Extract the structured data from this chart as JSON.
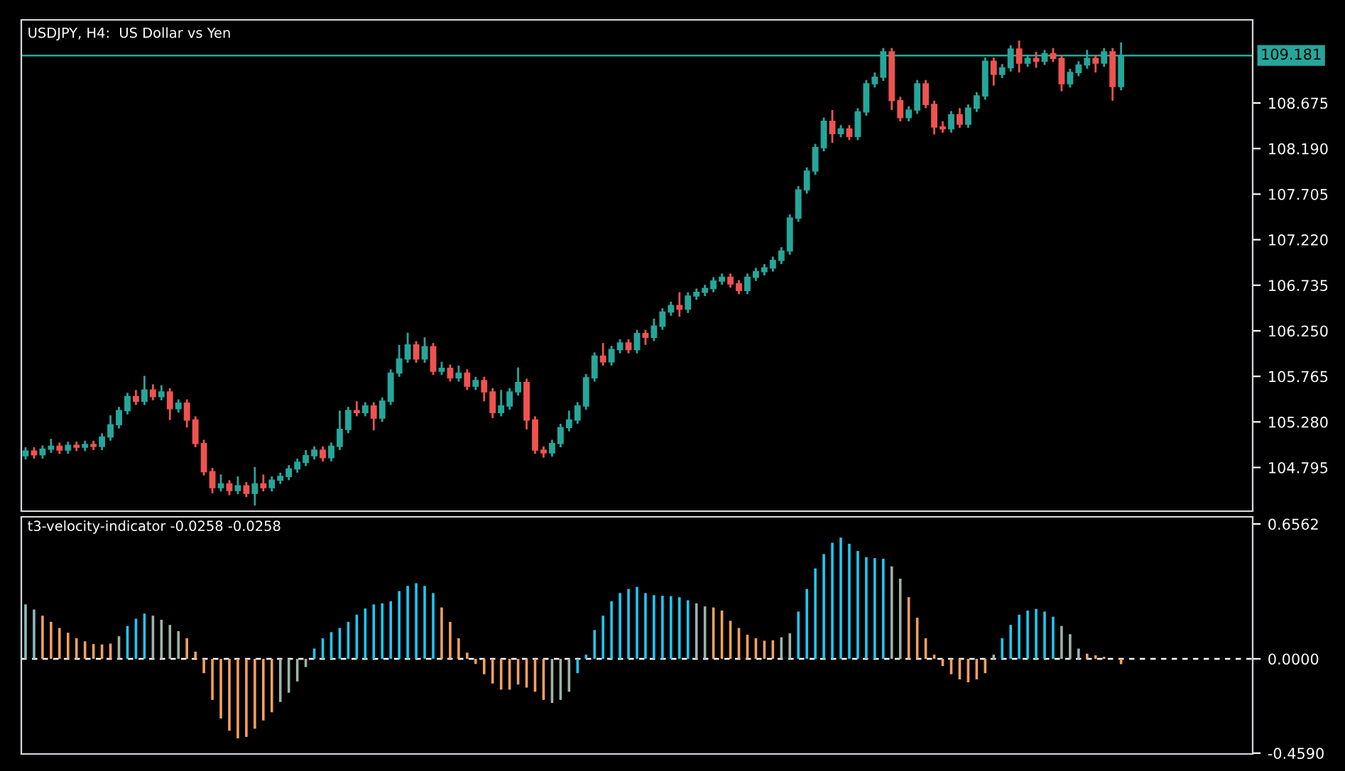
{
  "chart_data": [
    {
      "type": "candlestick",
      "title": "USDJPY, H4:  US Dollar vs Yen",
      "categories": [
        null,
        null,
        null,
        null,
        null,
        null,
        null,
        null,
        null,
        null,
        null,
        null,
        null,
        null,
        null,
        null,
        null,
        null,
        null,
        null,
        null,
        null,
        null,
        null,
        null,
        null,
        null,
        null,
        null,
        null,
        null,
        null,
        null,
        null,
        null,
        null,
        null,
        null,
        null,
        null,
        null,
        null,
        null,
        null,
        null,
        null,
        null,
        null,
        null,
        null,
        null,
        null,
        null,
        null,
        null,
        null,
        null,
        null,
        null,
        null,
        null,
        null,
        null,
        null,
        null,
        null,
        null,
        null,
        null,
        null,
        null,
        null,
        null,
        null,
        null,
        null,
        null,
        null,
        null,
        null,
        null,
        null,
        null,
        null,
        null,
        null,
        null,
        null,
        null,
        null,
        null,
        null,
        null,
        null,
        null,
        null,
        null,
        null,
        null,
        null,
        null,
        null,
        null,
        null,
        null,
        null,
        null,
        null,
        null,
        null,
        null,
        null,
        null,
        null,
        null,
        null,
        null,
        null,
        null,
        null,
        null,
        null,
        null,
        null,
        null,
        null,
        null,
        null,
        null,
        null,
        null,
        null,
        null,
        null,
        null,
        null,
        null,
        null,
        null,
        null,
        null,
        null,
        null,
        null,
        null
      ],
      "ohlc": [
        [
          104.92,
          105.01,
          104.88,
          104.97
        ],
        [
          104.97,
          105.01,
          104.89,
          104.93
        ],
        [
          104.93,
          105.03,
          104.89,
          104.99
        ],
        [
          104.99,
          105.1,
          104.95,
          105.02
        ],
        [
          105.02,
          105.06,
          104.94,
          104.98
        ],
        [
          104.98,
          105.07,
          104.94,
          105.03
        ],
        [
          105.03,
          105.07,
          104.97,
          105.01
        ],
        [
          105.01,
          105.08,
          104.97,
          105.04
        ],
        [
          105.04,
          105.08,
          104.98,
          105.02
        ],
        [
          105.02,
          105.16,
          104.98,
          105.12
        ],
        [
          105.12,
          105.35,
          105.08,
          105.25
        ],
        [
          105.25,
          105.44,
          105.21,
          105.4
        ],
        [
          105.4,
          105.59,
          105.36,
          105.55
        ],
        [
          105.55,
          105.62,
          105.46,
          105.5
        ],
        [
          105.5,
          105.77,
          105.46,
          105.62
        ],
        [
          105.62,
          105.68,
          105.51,
          105.55
        ],
        [
          105.55,
          105.67,
          105.51,
          105.6
        ],
        [
          105.6,
          105.64,
          105.3,
          105.42
        ],
        [
          105.42,
          105.52,
          105.38,
          105.48
        ],
        [
          105.48,
          105.52,
          105.22,
          105.3
        ],
        [
          105.3,
          105.34,
          105.01,
          105.05
        ],
        [
          105.05,
          105.09,
          104.71,
          104.75
        ],
        [
          104.75,
          104.79,
          104.52,
          104.58
        ],
        [
          104.58,
          104.72,
          104.54,
          104.62
        ],
        [
          104.62,
          104.66,
          104.5,
          104.55
        ],
        [
          104.55,
          104.7,
          104.51,
          104.6
        ],
        [
          104.6,
          104.64,
          104.48,
          104.52
        ],
        [
          104.52,
          104.8,
          104.39,
          104.62
        ],
        [
          104.62,
          104.72,
          104.54,
          104.58
        ],
        [
          104.58,
          104.7,
          104.54,
          104.66
        ],
        [
          104.66,
          104.74,
          104.62,
          104.7
        ],
        [
          104.7,
          104.82,
          104.66,
          104.78
        ],
        [
          104.78,
          104.89,
          104.74,
          104.85
        ],
        [
          104.85,
          104.98,
          104.81,
          104.92
        ],
        [
          104.92,
          105.02,
          104.88,
          104.98
        ],
        [
          104.98,
          105.02,
          104.86,
          104.9
        ],
        [
          104.9,
          105.06,
          104.86,
          105.02
        ],
        [
          105.02,
          105.4,
          104.98,
          105.2
        ],
        [
          105.2,
          105.44,
          105.16,
          105.4
        ],
        [
          105.4,
          105.5,
          105.34,
          105.38
        ],
        [
          105.38,
          105.49,
          105.34,
          105.45
        ],
        [
          105.45,
          105.49,
          105.19,
          105.32
        ],
        [
          105.32,
          105.54,
          105.28,
          105.5
        ],
        [
          105.5,
          105.84,
          105.46,
          105.8
        ],
        [
          105.8,
          106.1,
          105.76,
          105.95
        ],
        [
          105.95,
          106.23,
          105.91,
          106.1
        ],
        [
          106.1,
          106.14,
          105.91,
          105.95
        ],
        [
          105.95,
          106.18,
          105.91,
          106.08
        ],
        [
          106.08,
          106.12,
          105.78,
          105.82
        ],
        [
          105.82,
          105.92,
          105.78,
          105.85
        ],
        [
          105.85,
          105.89,
          105.71,
          105.75
        ],
        [
          105.75,
          105.88,
          105.71,
          105.8
        ],
        [
          105.8,
          105.84,
          105.62,
          105.66
        ],
        [
          105.66,
          105.76,
          105.62,
          105.72
        ],
        [
          105.72,
          105.76,
          105.5,
          105.6
        ],
        [
          105.6,
          105.64,
          105.32,
          105.38
        ],
        [
          105.38,
          105.62,
          105.34,
          105.45
        ],
        [
          105.45,
          105.64,
          105.41,
          105.6
        ],
        [
          105.6,
          105.86,
          105.56,
          105.7
        ],
        [
          105.7,
          105.74,
          105.2,
          105.3
        ],
        [
          105.3,
          105.34,
          104.94,
          104.98
        ],
        [
          104.98,
          105.02,
          104.9,
          104.95
        ],
        [
          104.95,
          105.09,
          104.91,
          105.05
        ],
        [
          105.05,
          105.26,
          105.01,
          105.22
        ],
        [
          105.22,
          105.4,
          105.18,
          105.3
        ],
        [
          105.3,
          105.49,
          105.26,
          105.45
        ],
        [
          105.45,
          105.79,
          105.41,
          105.75
        ],
        [
          105.75,
          106.02,
          105.71,
          105.98
        ],
        [
          105.98,
          106.12,
          105.88,
          105.92
        ],
        [
          105.92,
          106.09,
          105.88,
          106.05
        ],
        [
          106.05,
          106.16,
          106.01,
          106.12
        ],
        [
          106.12,
          106.16,
          106.01,
          106.05
        ],
        [
          106.05,
          106.26,
          106.01,
          106.22
        ],
        [
          106.22,
          106.26,
          106.1,
          106.18
        ],
        [
          106.18,
          106.38,
          106.14,
          106.3
        ],
        [
          106.3,
          106.49,
          106.26,
          106.45
        ],
        [
          106.45,
          106.56,
          106.41,
          106.52
        ],
        [
          106.52,
          106.66,
          106.4,
          106.48
        ],
        [
          106.48,
          106.66,
          106.44,
          106.62
        ],
        [
          106.62,
          106.7,
          106.58,
          106.66
        ],
        [
          106.66,
          106.74,
          106.62,
          106.7
        ],
        [
          106.7,
          106.82,
          106.66,
          106.78
        ],
        [
          106.78,
          106.86,
          106.74,
          106.82
        ],
        [
          106.82,
          106.86,
          106.71,
          106.75
        ],
        [
          106.75,
          106.79,
          106.64,
          106.68
        ],
        [
          106.68,
          106.86,
          106.64,
          106.82
        ],
        [
          106.82,
          106.92,
          106.78,
          106.88
        ],
        [
          106.88,
          106.96,
          106.84,
          106.92
        ],
        [
          106.92,
          107.04,
          106.88,
          107.0
        ],
        [
          107.0,
          107.14,
          106.96,
          107.1
        ],
        [
          107.1,
          107.49,
          107.06,
          107.45
        ],
        [
          107.45,
          107.79,
          107.41,
          107.75
        ],
        [
          107.75,
          107.99,
          107.71,
          107.95
        ],
        [
          107.95,
          108.24,
          107.91,
          108.2
        ],
        [
          108.2,
          108.52,
          108.16,
          108.48
        ],
        [
          108.48,
          108.6,
          108.25,
          108.35
        ],
        [
          108.35,
          108.44,
          108.31,
          108.4
        ],
        [
          108.4,
          108.44,
          108.28,
          108.32
        ],
        [
          108.32,
          108.62,
          108.28,
          108.58
        ],
        [
          108.58,
          108.92,
          108.54,
          108.88
        ],
        [
          108.88,
          109.0,
          108.84,
          108.95
        ],
        [
          108.95,
          109.26,
          108.91,
          109.22
        ],
        [
          109.22,
          109.26,
          108.6,
          108.7
        ],
        [
          108.7,
          108.74,
          108.48,
          108.52
        ],
        [
          108.52,
          108.64,
          108.48,
          108.6
        ],
        [
          108.6,
          108.92,
          108.56,
          108.88
        ],
        [
          108.88,
          108.92,
          108.62,
          108.66
        ],
        [
          108.66,
          108.7,
          108.34,
          108.42
        ],
        [
          108.42,
          108.48,
          108.36,
          108.4
        ],
        [
          108.4,
          108.59,
          108.36,
          108.55
        ],
        [
          108.55,
          108.62,
          108.41,
          108.45
        ],
        [
          108.45,
          108.66,
          108.41,
          108.62
        ],
        [
          108.62,
          108.79,
          108.58,
          108.75
        ],
        [
          108.75,
          109.16,
          108.71,
          109.12
        ],
        [
          109.12,
          109.16,
          108.86,
          108.98
        ],
        [
          108.98,
          109.09,
          108.94,
          109.05
        ],
        [
          109.05,
          109.29,
          109.01,
          109.25
        ],
        [
          109.25,
          109.34,
          109.0,
          109.1
        ],
        [
          109.1,
          109.19,
          109.06,
          109.15
        ],
        [
          109.15,
          109.22,
          109.05,
          109.12
        ],
        [
          109.12,
          109.24,
          109.08,
          109.2
        ],
        [
          109.2,
          109.26,
          109.11,
          109.15
        ],
        [
          109.15,
          109.19,
          108.8,
          108.88
        ],
        [
          108.88,
          109.04,
          108.84,
          109.0
        ],
        [
          109.0,
          109.12,
          108.96,
          109.08
        ],
        [
          109.08,
          109.24,
          109.04,
          109.15
        ],
        [
          109.15,
          109.19,
          109.0,
          109.1
        ],
        [
          109.1,
          109.26,
          109.06,
          109.22
        ],
        [
          109.22,
          109.26,
          108.7,
          108.85
        ],
        [
          108.85,
          109.32,
          108.81,
          109.181
        ],
        null,
        null,
        null,
        null,
        null,
        null,
        null,
        null,
        null,
        null,
        null,
        null,
        null,
        null,
        null
      ],
      "colors": [
        "#26a69a",
        "#ef5350",
        "#26a69a",
        "#26a69a",
        "#ef5350",
        "#26a69a",
        "#ef5350",
        "#26a69a",
        "#ef5350",
        "#26a69a",
        "#26a69a",
        "#26a69a",
        "#26a69a",
        "#ef5350",
        "#26a69a",
        "#ef5350",
        "#26a69a",
        "#ef5350",
        "#26a69a",
        "#ef5350",
        "#ef5350",
        "#ef5350",
        "#ef5350",
        "#26a69a",
        "#ef5350",
        "#26a69a",
        "#ef5350",
        "#26a69a",
        "#ef5350",
        "#26a69a",
        "#26a69a",
        "#26a69a",
        "#26a69a",
        "#26a69a",
        "#26a69a",
        "#ef5350",
        "#26a69a",
        "#26a69a",
        "#26a69a",
        "#ef5350",
        "#26a69a",
        "#ef5350",
        "#26a69a",
        "#26a69a",
        "#26a69a",
        "#26a69a",
        "#ef5350",
        "#26a69a",
        "#ef5350",
        "#26a69a",
        "#ef5350",
        "#26a69a",
        "#ef5350",
        "#26a69a",
        "#ef5350",
        "#ef5350",
        "#26a69a",
        "#26a69a",
        "#26a69a",
        "#ef5350",
        "#ef5350",
        "#ef5350",
        "#26a69a",
        "#26a69a",
        "#26a69a",
        "#26a69a",
        "#26a69a",
        "#26a69a",
        "#ef5350",
        "#26a69a",
        "#26a69a",
        "#ef5350",
        "#26a69a",
        "#ef5350",
        "#26a69a",
        "#26a69a",
        "#26a69a",
        "#ef5350",
        "#26a69a",
        "#26a69a",
        "#26a69a",
        "#26a69a",
        "#26a69a",
        "#ef5350",
        "#ef5350",
        "#26a69a",
        "#26a69a",
        "#26a69a",
        "#26a69a",
        "#26a69a",
        "#26a69a",
        "#26a69a",
        "#26a69a",
        "#26a69a",
        "#26a69a",
        "#ef5350",
        "#26a69a",
        "#ef5350",
        "#26a69a",
        "#26a69a",
        "#26a69a",
        "#26a69a",
        "#ef5350",
        "#ef5350",
        "#26a69a",
        "#26a69a",
        "#ef5350",
        "#ef5350",
        "#ef5350",
        "#26a69a",
        "#ef5350",
        "#26a69a",
        "#26a69a",
        "#26a69a",
        "#ef5350",
        "#26a69a",
        "#26a69a",
        "#ef5350",
        "#26a69a",
        "#ef5350",
        "#26a69a",
        "#ef5350",
        "#ef5350",
        "#26a69a",
        "#26a69a",
        "#26a69a",
        "#ef5350",
        "#26a69a",
        "#ef5350",
        "#26a69a",
        null,
        null,
        null,
        null,
        null,
        null,
        null,
        null,
        null,
        null,
        null,
        null,
        null,
        null,
        null
      ],
      "ylim": [
        104.33,
        109.56
      ],
      "yticks": [
        {
          "value": 104.795,
          "label": "104.795"
        },
        {
          "value": 105.28,
          "label": "105.280"
        },
        {
          "value": 105.765,
          "label": "105.765"
        },
        {
          "value": 106.25,
          "label": "106.250"
        },
        {
          "value": 106.735,
          "label": "106.735"
        },
        {
          "value": 107.22,
          "label": "107.220"
        },
        {
          "value": 107.705,
          "label": "107.705"
        },
        {
          "value": 108.19,
          "label": "108.190"
        },
        {
          "value": 108.675,
          "label": "108.675"
        }
      ],
      "ref_lines": [
        {
          "axis": "y",
          "value": 109.181,
          "label": "109.181",
          "color": "#26a69a"
        }
      ],
      "tick_labels": "y"
    },
    {
      "type": "bar",
      "title": "t3-velocity-indicator -0.0258 -0.0258",
      "categories": [
        null,
        null,
        null,
        null,
        null,
        null,
        null,
        null,
        null,
        null,
        null,
        null,
        null,
        null,
        null,
        null,
        null,
        null,
        null,
        null,
        null,
        null,
        null,
        null,
        null,
        null,
        null,
        null,
        null,
        null,
        null,
        null,
        null,
        null,
        null,
        null,
        null,
        null,
        null,
        null,
        null,
        null,
        null,
        null,
        null,
        null,
        null,
        null,
        null,
        null,
        null,
        null,
        null,
        null,
        null,
        null,
        null,
        null,
        null,
        null,
        null,
        null,
        null,
        null,
        null,
        null,
        null,
        null,
        null,
        null,
        null,
        null,
        null,
        null,
        null,
        null,
        null,
        null,
        null,
        null,
        null,
        null,
        null,
        null,
        null,
        null,
        null,
        null,
        null,
        null,
        null,
        null,
        null,
        null,
        null,
        null,
        null,
        null,
        null,
        null,
        null,
        null,
        null,
        null,
        null,
        null,
        null,
        null,
        null,
        null,
        null,
        null,
        null,
        null,
        null,
        null,
        null,
        null,
        null,
        null,
        null,
        null,
        null,
        null,
        null,
        null,
        null,
        null,
        null,
        null,
        null,
        null,
        null,
        null,
        null,
        null,
        null,
        null,
        null,
        null,
        null,
        null,
        null,
        null,
        null
      ],
      "values": [
        0.265,
        0.24,
        0.21,
        0.18,
        0.15,
        0.127,
        0.1,
        0.085,
        0.072,
        0.07,
        0.074,
        0.11,
        0.16,
        0.195,
        0.22,
        0.21,
        0.19,
        0.165,
        0.135,
        0.1,
        0.035,
        -0.07,
        -0.2,
        -0.29,
        -0.35,
        -0.387,
        -0.38,
        -0.34,
        -0.3,
        -0.26,
        -0.21,
        -0.165,
        -0.11,
        -0.04,
        0.05,
        0.1,
        0.13,
        0.15,
        0.18,
        0.215,
        0.245,
        0.265,
        0.27,
        0.28,
        0.33,
        0.355,
        0.368,
        0.355,
        0.32,
        0.25,
        0.18,
        0.1,
        0.03,
        -0.025,
        -0.075,
        -0.12,
        -0.15,
        -0.15,
        -0.125,
        -0.14,
        -0.16,
        -0.2,
        -0.215,
        -0.2,
        -0.16,
        -0.07,
        0.02,
        0.14,
        0.21,
        0.28,
        0.32,
        0.34,
        0.35,
        0.32,
        0.31,
        0.307,
        0.305,
        0.3,
        0.285,
        0.27,
        0.255,
        0.25,
        0.235,
        0.185,
        0.15,
        0.117,
        0.1,
        0.088,
        0.09,
        0.105,
        0.124,
        0.23,
        0.34,
        0.44,
        0.51,
        0.565,
        0.59,
        0.56,
        0.525,
        0.495,
        0.49,
        0.487,
        0.45,
        0.39,
        0.3,
        0.2,
        0.1,
        0.02,
        -0.035,
        -0.075,
        -0.1,
        -0.114,
        -0.1,
        -0.07,
        0.02,
        0.1,
        0.165,
        0.215,
        0.235,
        0.243,
        0.23,
        0.205,
        0.16,
        0.12,
        0.05,
        0.025,
        0.017,
        0.01,
        0.0,
        -0.026,
        null,
        null,
        null,
        null,
        null,
        null,
        null,
        null,
        null,
        null,
        null,
        null,
        null,
        null,
        null
      ],
      "colors": [
        "#8fb8c0",
        "#8fb8c0",
        "#f5a060",
        "#f5a060",
        "#f5a060",
        "#f5a060",
        "#f5a060",
        "#f5a060",
        "#f5a060",
        "#f5a060",
        "#f5a060",
        "#9fb3a8",
        "#1ec8f5",
        "#1ec8f5",
        "#1ec8f5",
        "#9fb3a8",
        "#9fb3a8",
        "#9fb3a8",
        "#9fb3a8",
        "#f5a060",
        "#f5a060",
        "#f5a060",
        "#f5a060",
        "#f5a060",
        "#f5a060",
        "#f5a060",
        "#f5a060",
        "#f5a060",
        "#f5a060",
        "#f5a060",
        "#9fb3a8",
        "#9fb3a8",
        "#9fb3a8",
        "#9fb3a8",
        "#1ec8f5",
        "#1ec8f5",
        "#1ec8f5",
        "#1ec8f5",
        "#1ec8f5",
        "#1ec8f5",
        "#1ec8f5",
        "#1ec8f5",
        "#1ec8f5",
        "#1ec8f5",
        "#1ec8f5",
        "#1ec8f5",
        "#1ec8f5",
        "#1ec8f5",
        "#1ec8f5",
        "#f5a060",
        "#f5a060",
        "#f5a060",
        "#f5a060",
        "#f5a060",
        "#f5a060",
        "#f5a060",
        "#f5a060",
        "#f5a060",
        "#f5a060",
        "#f5a060",
        "#f5a060",
        "#f5a060",
        "#9fb3a8",
        "#9fb3a8",
        "#9fb3a8",
        "#1ec8f5",
        "#1ec8f5",
        "#1ec8f5",
        "#1ec8f5",
        "#1ec8f5",
        "#1ec8f5",
        "#1ec8f5",
        "#1ec8f5",
        "#1ec8f5",
        "#1ec8f5",
        "#1ec8f5",
        "#1ec8f5",
        "#1ec8f5",
        "#1ec8f5",
        "#9fb3a8",
        "#9fb3a8",
        "#f5a060",
        "#f5a060",
        "#f5a060",
        "#f5a060",
        "#f5a060",
        "#f5a060",
        "#f5a060",
        "#f5a060",
        "#9fb3a8",
        "#9fb3a8",
        "#1ec8f5",
        "#1ec8f5",
        "#1ec8f5",
        "#1ec8f5",
        "#1ec8f5",
        "#1ec8f5",
        "#1ec8f5",
        "#1ec8f5",
        "#1ec8f5",
        "#1ec8f5",
        "#1ec8f5",
        "#9fb3a8",
        "#9fb3a8",
        "#f5a060",
        "#f5a060",
        "#f5a060",
        "#f5a060",
        "#f5a060",
        "#f5a060",
        "#f5a060",
        "#f5a060",
        "#f5a060",
        "#f5a060",
        "#9fb3a8",
        "#1ec8f5",
        "#1ec8f5",
        "#1ec8f5",
        "#1ec8f5",
        "#1ec8f5",
        "#1ec8f5",
        "#1ec8f5",
        "#9fb3a8",
        "#9fb3a8",
        "#9fb3a8",
        "#f5a060",
        "#f5a060",
        "#f5a060",
        "#f5a060",
        "#f5a060",
        null,
        null,
        null,
        null,
        null,
        null,
        null,
        null,
        null,
        null,
        null,
        null,
        null,
        null,
        null
      ],
      "ylim": [
        -0.463,
        0.691
      ],
      "yticks": [
        {
          "value": -0.459,
          "label": "-0.4590"
        },
        {
          "value": 0,
          "label": "0.0000"
        },
        {
          "value": 0.6562,
          "label": "0.6562"
        }
      ],
      "ref_lines": [
        {
          "axis": "y",
          "value": 0,
          "color": "#ffffff",
          "line_style": "dashed"
        }
      ],
      "tick_labels": "y"
    }
  ]
}
